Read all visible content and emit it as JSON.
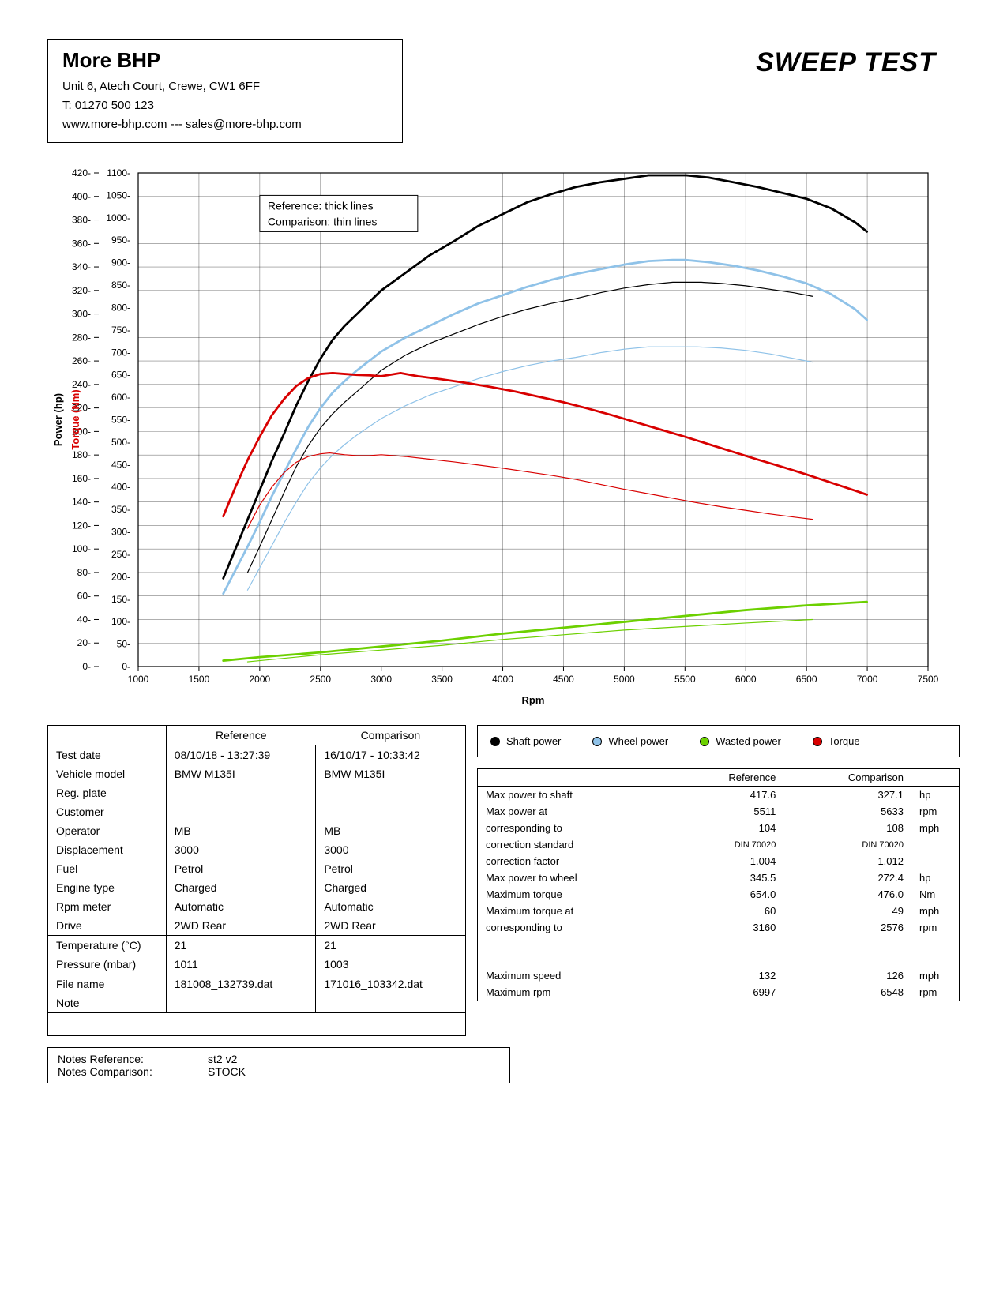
{
  "header": {
    "company_name": "More BHP",
    "address": "Unit 6, Atech Court, Crewe, CW1 6FF",
    "phone": "T: 01270 500 123",
    "web_email": "www.more-bhp.com --- sales@more-bhp.com",
    "report_title": "SWEEP TEST"
  },
  "chart": {
    "type": "line",
    "background_color": "#ffffff",
    "grid_color": "#000000",
    "grid_stroke": 0.6,
    "x_axis": {
      "title": "Rpm",
      "min": 1000,
      "max": 7500,
      "tick_step": 500,
      "label_fontsize": 12
    },
    "y1_axis": {
      "title": "Power (hp)",
      "min": 0,
      "max": 420,
      "tick_step": 20,
      "label_fontsize": 12
    },
    "y2_axis": {
      "title": "Torque (Nm)",
      "min": 0,
      "max": 1100,
      "tick_step": 50,
      "label_fontsize": 12,
      "color": "#d80000"
    },
    "inset_legend": {
      "x": 2000,
      "y_top": 1050,
      "lines": [
        "Reference: thick lines",
        "Comparison: thin lines"
      ]
    },
    "series_legend": [
      {
        "label": "Shaft power",
        "color": "#000000"
      },
      {
        "label": "Wheel power",
        "color": "#8fc2e8"
      },
      {
        "label": "Wasted power",
        "color": "#6cd000"
      },
      {
        "label": "Torque",
        "color": "#d80000"
      }
    ],
    "series": [
      {
        "name": "shaft_ref",
        "axis": "y1",
        "color": "#000000",
        "width": 2.8,
        "points": [
          [
            1700,
            75
          ],
          [
            1800,
            100
          ],
          [
            1900,
            125
          ],
          [
            2000,
            150
          ],
          [
            2100,
            175
          ],
          [
            2200,
            198
          ],
          [
            2300,
            222
          ],
          [
            2400,
            243
          ],
          [
            2500,
            262
          ],
          [
            2600,
            278
          ],
          [
            2700,
            290
          ],
          [
            2800,
            300
          ],
          [
            2900,
            310
          ],
          [
            3000,
            320
          ],
          [
            3200,
            335
          ],
          [
            3400,
            350
          ],
          [
            3600,
            362
          ],
          [
            3800,
            375
          ],
          [
            4000,
            385
          ],
          [
            4200,
            395
          ],
          [
            4400,
            402
          ],
          [
            4600,
            408
          ],
          [
            4800,
            412
          ],
          [
            5000,
            415
          ],
          [
            5200,
            418
          ],
          [
            5400,
            418
          ],
          [
            5511,
            418
          ],
          [
            5700,
            416
          ],
          [
            5900,
            412
          ],
          [
            6100,
            408
          ],
          [
            6300,
            403
          ],
          [
            6500,
            398
          ],
          [
            6700,
            390
          ],
          [
            6900,
            378
          ],
          [
            6997,
            370
          ]
        ]
      },
      {
        "name": "shaft_cmp",
        "axis": "y1",
        "color": "#000000",
        "width": 1.2,
        "points": [
          [
            1900,
            80
          ],
          [
            2000,
            102
          ],
          [
            2100,
            125
          ],
          [
            2200,
            148
          ],
          [
            2300,
            170
          ],
          [
            2400,
            188
          ],
          [
            2500,
            203
          ],
          [
            2600,
            215
          ],
          [
            2700,
            225
          ],
          [
            2800,
            234
          ],
          [
            2900,
            243
          ],
          [
            3000,
            252
          ],
          [
            3200,
            265
          ],
          [
            3400,
            275
          ],
          [
            3600,
            283
          ],
          [
            3800,
            291
          ],
          [
            4000,
            298
          ],
          [
            4200,
            304
          ],
          [
            4400,
            309
          ],
          [
            4600,
            313
          ],
          [
            4800,
            318
          ],
          [
            5000,
            322
          ],
          [
            5200,
            325
          ],
          [
            5400,
            327
          ],
          [
            5633,
            327
          ],
          [
            5800,
            326
          ],
          [
            6000,
            324
          ],
          [
            6200,
            321
          ],
          [
            6400,
            318
          ],
          [
            6548,
            315
          ]
        ]
      },
      {
        "name": "wheel_ref",
        "axis": "y1",
        "color": "#8fc2e8",
        "width": 2.8,
        "points": [
          [
            1700,
            62
          ],
          [
            1800,
            82
          ],
          [
            1900,
            102
          ],
          [
            2000,
            123
          ],
          [
            2100,
            145
          ],
          [
            2200,
            165
          ],
          [
            2300,
            185
          ],
          [
            2400,
            204
          ],
          [
            2500,
            220
          ],
          [
            2600,
            233
          ],
          [
            2700,
            243
          ],
          [
            2800,
            252
          ],
          [
            2900,
            260
          ],
          [
            3000,
            268
          ],
          [
            3200,
            280
          ],
          [
            3400,
            290
          ],
          [
            3600,
            300
          ],
          [
            3800,
            309
          ],
          [
            4000,
            316
          ],
          [
            4200,
            323
          ],
          [
            4400,
            329
          ],
          [
            4600,
            334
          ],
          [
            4800,
            338
          ],
          [
            5000,
            342
          ],
          [
            5200,
            345
          ],
          [
            5400,
            346
          ],
          [
            5500,
            346
          ],
          [
            5700,
            344
          ],
          [
            5900,
            341
          ],
          [
            6100,
            337
          ],
          [
            6300,
            332
          ],
          [
            6500,
            326
          ],
          [
            6700,
            317
          ],
          [
            6900,
            304
          ],
          [
            6997,
            295
          ]
        ]
      },
      {
        "name": "wheel_cmp",
        "axis": "y1",
        "color": "#8fc2e8",
        "width": 1.2,
        "points": [
          [
            1900,
            65
          ],
          [
            2000,
            84
          ],
          [
            2100,
            103
          ],
          [
            2200,
            122
          ],
          [
            2300,
            140
          ],
          [
            2400,
            156
          ],
          [
            2500,
            169
          ],
          [
            2600,
            180
          ],
          [
            2700,
            189
          ],
          [
            2800,
            197
          ],
          [
            2900,
            204
          ],
          [
            3000,
            211
          ],
          [
            3200,
            222
          ],
          [
            3400,
            231
          ],
          [
            3600,
            238
          ],
          [
            3800,
            245
          ],
          [
            4000,
            251
          ],
          [
            4200,
            256
          ],
          [
            4400,
            260
          ],
          [
            4600,
            263
          ],
          [
            4800,
            267
          ],
          [
            5000,
            270
          ],
          [
            5200,
            272
          ],
          [
            5400,
            272
          ],
          [
            5600,
            272
          ],
          [
            5800,
            271
          ],
          [
            6000,
            269
          ],
          [
            6200,
            266
          ],
          [
            6400,
            262
          ],
          [
            6548,
            259
          ]
        ]
      },
      {
        "name": "wasted_ref",
        "axis": "y1",
        "color": "#6cd000",
        "width": 2.8,
        "points": [
          [
            1700,
            5
          ],
          [
            2000,
            8
          ],
          [
            2500,
            12
          ],
          [
            3000,
            17
          ],
          [
            3500,
            22
          ],
          [
            4000,
            28
          ],
          [
            4500,
            33
          ],
          [
            5000,
            38
          ],
          [
            5500,
            43
          ],
          [
            6000,
            48
          ],
          [
            6500,
            52
          ],
          [
            6997,
            55
          ]
        ]
      },
      {
        "name": "wasted_cmp",
        "axis": "y1",
        "color": "#6cd000",
        "width": 1.2,
        "points": [
          [
            1900,
            4
          ],
          [
            2500,
            10
          ],
          [
            3000,
            14
          ],
          [
            3500,
            18
          ],
          [
            4000,
            23
          ],
          [
            4500,
            27
          ],
          [
            5000,
            31
          ],
          [
            5500,
            34
          ],
          [
            6000,
            37
          ],
          [
            6548,
            40
          ]
        ]
      },
      {
        "name": "torque_ref",
        "axis": "y2",
        "color": "#d80000",
        "width": 2.8,
        "points": [
          [
            1700,
            335
          ],
          [
            1800,
            400
          ],
          [
            1900,
            460
          ],
          [
            2000,
            512
          ],
          [
            2100,
            560
          ],
          [
            2200,
            596
          ],
          [
            2300,
            625
          ],
          [
            2400,
            643
          ],
          [
            2500,
            652
          ],
          [
            2600,
            654
          ],
          [
            2700,
            652
          ],
          [
            2800,
            650
          ],
          [
            2900,
            649
          ],
          [
            3000,
            647
          ],
          [
            3160,
            654
          ],
          [
            3300,
            647
          ],
          [
            3500,
            640
          ],
          [
            3700,
            632
          ],
          [
            3900,
            623
          ],
          [
            4100,
            613
          ],
          [
            4300,
            601
          ],
          [
            4500,
            589
          ],
          [
            4700,
            575
          ],
          [
            4900,
            560
          ],
          [
            5100,
            544
          ],
          [
            5300,
            528
          ],
          [
            5500,
            512
          ],
          [
            5700,
            495
          ],
          [
            5900,
            478
          ],
          [
            6100,
            461
          ],
          [
            6300,
            445
          ],
          [
            6500,
            428
          ],
          [
            6700,
            410
          ],
          [
            6900,
            392
          ],
          [
            6997,
            383
          ]
        ]
      },
      {
        "name": "torque_cmp",
        "axis": "y2",
        "color": "#d80000",
        "width": 1.2,
        "points": [
          [
            1900,
            308
          ],
          [
            2000,
            360
          ],
          [
            2100,
            400
          ],
          [
            2200,
            432
          ],
          [
            2300,
            455
          ],
          [
            2400,
            468
          ],
          [
            2500,
            474
          ],
          [
            2576,
            476
          ],
          [
            2700,
            472
          ],
          [
            2800,
            470
          ],
          [
            2900,
            470
          ],
          [
            3000,
            472
          ],
          [
            3200,
            468
          ],
          [
            3400,
            462
          ],
          [
            3600,
            456
          ],
          [
            3800,
            449
          ],
          [
            4000,
            442
          ],
          [
            4200,
            434
          ],
          [
            4400,
            426
          ],
          [
            4600,
            417
          ],
          [
            4800,
            406
          ],
          [
            5000,
            395
          ],
          [
            5200,
            385
          ],
          [
            5400,
            375
          ],
          [
            5600,
            365
          ],
          [
            5800,
            356
          ],
          [
            6000,
            348
          ],
          [
            6200,
            340
          ],
          [
            6400,
            333
          ],
          [
            6548,
            328
          ]
        ]
      }
    ]
  },
  "info_table": {
    "col_headers": [
      "",
      "Reference",
      "Comparison"
    ],
    "rows1": [
      [
        "Test date",
        "08/10/18 - 13:27:39",
        "16/10/17 - 10:33:42"
      ],
      [
        "Vehicle model",
        "BMW M135I",
        "BMW M135I"
      ],
      [
        "Reg. plate",
        "",
        ""
      ],
      [
        "Customer",
        "",
        ""
      ],
      [
        "Operator",
        "MB",
        "MB"
      ],
      [
        "Displacement",
        "3000",
        "3000"
      ],
      [
        "Fuel",
        "Petrol",
        "Petrol"
      ],
      [
        "Engine type",
        "Charged",
        "Charged"
      ],
      [
        "Rpm meter",
        "Automatic",
        "Automatic"
      ],
      [
        "Drive",
        "2WD Rear",
        "2WD Rear"
      ]
    ],
    "rows2": [
      [
        "Temperature (°C)",
        "21",
        "21"
      ],
      [
        "Pressure (mbar)",
        "1011",
        "1003"
      ]
    ],
    "rows3": [
      [
        "File name",
        "181008_132739.dat",
        "171016_103342.dat"
      ],
      [
        "Note",
        "",
        ""
      ]
    ]
  },
  "stats_table": {
    "headers": [
      "",
      "Reference",
      "Comparison",
      ""
    ],
    "rows": [
      [
        "Max power to shaft",
        "417.6",
        "327.1",
        "hp"
      ],
      [
        "Max power at",
        "5511",
        "5633",
        "rpm"
      ],
      [
        "corresponding to",
        "104",
        "108",
        "mph"
      ],
      [
        "correction standard",
        "DIN 70020",
        "DIN 70020",
        ""
      ],
      [
        "correction factor",
        "1.004",
        "1.012",
        ""
      ],
      [
        "Max power to wheel",
        "345.5",
        "272.4",
        "hp"
      ],
      [
        "Maximum torque",
        "654.0",
        "476.0",
        "Nm"
      ],
      [
        "Maximum torque at",
        "60",
        "49",
        "mph"
      ],
      [
        "corresponding to",
        "3160",
        "2576",
        "rpm"
      ],
      [
        "",
        "",
        "",
        ""
      ],
      [
        "",
        "",
        "",
        ""
      ],
      [
        "Maximum speed",
        "132",
        "126",
        "mph"
      ],
      [
        "Maximum rpm",
        "6997",
        "6548",
        "rpm"
      ]
    ]
  },
  "notes": {
    "ref_label": "Notes Reference:",
    "ref_value": "st2 v2",
    "cmp_label": "Notes Comparison:",
    "cmp_value": "STOCK"
  }
}
